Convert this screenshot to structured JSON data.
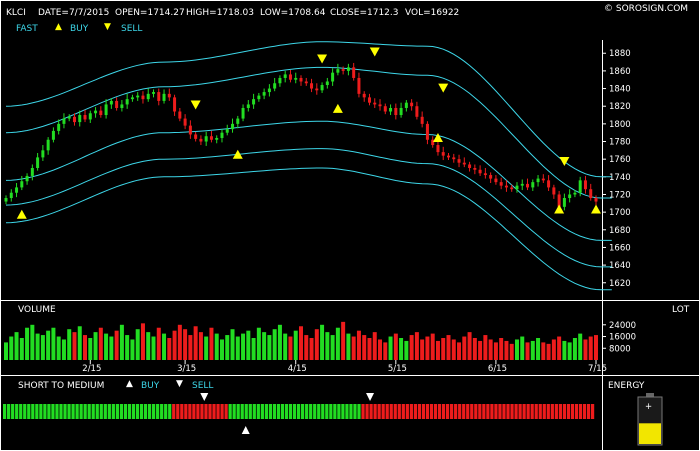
{
  "header": {
    "symbol": "KLCI",
    "date": "DATE=7/7/2015",
    "open": "OPEN=1714.27",
    "high": "HIGH=1718.03",
    "low": "LOW=1708.64",
    "close": "CLOSE=1712.3",
    "vol": "VOL=16922",
    "brand": "© SOROSIGN.COM",
    "legend_fast": "FAST",
    "legend_buy": "BUY",
    "legend_sell": "SELL"
  },
  "volume_panel": {
    "label": "VOLUME",
    "unit": "LOT"
  },
  "stm_panel": {
    "label": "SHORT TO MEDIUM",
    "buy": "BUY",
    "sell": "SELL"
  },
  "energy_panel": {
    "label": "ENERGY"
  },
  "colors": {
    "up": "#22dd22",
    "down": "#ee1c1c",
    "band": "#3dd6e8",
    "signal": "#ffff00",
    "energy": "#f2e600"
  },
  "chart_data": {
    "type": "candlestick",
    "price_axis": {
      "ylim": [
        1605,
        1895
      ],
      "ticks": [
        1620,
        1640,
        1660,
        1680,
        1700,
        1720,
        1740,
        1760,
        1780,
        1800,
        1820,
        1840,
        1860,
        1880
      ]
    },
    "x_ticks": [
      "2/15",
      "3/15",
      "4/15",
      "5/15",
      "6/15",
      "7/15"
    ],
    "close": [
      1716,
      1722,
      1728,
      1735,
      1741,
      1750,
      1762,
      1770,
      1782,
      1792,
      1800,
      1806,
      1808,
      1802,
      1810,
      1805,
      1812,
      1815,
      1810,
      1822,
      1826,
      1818,
      1822,
      1828,
      1830,
      1832,
      1828,
      1834,
      1836,
      1826,
      1834,
      1830,
      1814,
      1806,
      1798,
      1788,
      1783,
      1780,
      1786,
      1782,
      1784,
      1790,
      1794,
      1800,
      1806,
      1818,
      1822,
      1828,
      1832,
      1836,
      1840,
      1846,
      1852,
      1856,
      1850,
      1852,
      1848,
      1846,
      1840,
      1838,
      1844,
      1848,
      1858,
      1862,
      1860,
      1864,
      1852,
      1834,
      1830,
      1824,
      1822,
      1820,
      1814,
      1818,
      1810,
      1818,
      1824,
      1820,
      1808,
      1800,
      1782,
      1776,
      1768,
      1764,
      1762,
      1760,
      1756,
      1754,
      1750,
      1748,
      1744,
      1742,
      1738,
      1734,
      1730,
      1728,
      1726,
      1730,
      1732,
      1728,
      1734,
      1738,
      1736,
      1728,
      1720,
      1706,
      1716,
      1720,
      1722,
      1736,
      1726,
      1716,
      1712
    ],
    "bands": [
      {
        "name": "upper2",
        "anchors": [
          [
            0,
            1820
          ],
          [
            30,
            1870
          ],
          [
            60,
            1893
          ],
          [
            80,
            1888
          ],
          [
            113,
            1740
          ]
        ]
      },
      {
        "name": "upper1",
        "anchors": [
          [
            0,
            1790
          ],
          [
            30,
            1842
          ],
          [
            60,
            1864
          ],
          [
            80,
            1855
          ],
          [
            113,
            1716
          ]
        ]
      },
      {
        "name": "middle",
        "anchors": [
          [
            0,
            1736
          ],
          [
            30,
            1790
          ],
          [
            60,
            1803
          ],
          [
            80,
            1788
          ],
          [
            113,
            1668
          ]
        ]
      },
      {
        "name": "lower1",
        "anchors": [
          [
            0,
            1708
          ],
          [
            30,
            1760
          ],
          [
            60,
            1772
          ],
          [
            80,
            1755
          ],
          [
            113,
            1638
          ]
        ]
      },
      {
        "name": "lower2",
        "anchors": [
          [
            0,
            1688
          ],
          [
            30,
            1740
          ],
          [
            60,
            1750
          ],
          [
            80,
            1732
          ],
          [
            113,
            1612
          ]
        ]
      }
    ],
    "buy_signals": [
      [
        3,
        1697
      ],
      [
        44,
        1765
      ],
      [
        63,
        1817
      ],
      [
        82,
        1784
      ],
      [
        105,
        1703
      ],
      [
        112,
        1703
      ]
    ],
    "sell_signals": [
      [
        36,
        1822
      ],
      [
        60,
        1874
      ],
      [
        70,
        1882
      ],
      [
        83,
        1841
      ],
      [
        106,
        1758
      ]
    ],
    "volume": {
      "ticks": [
        8000,
        16000,
        24000
      ],
      "ymax": 30000,
      "values": [
        12000,
        16000,
        19000,
        15000,
        22000,
        24000,
        18000,
        17000,
        20000,
        22000,
        16000,
        14000,
        21000,
        19000,
        23000,
        17000,
        15000,
        19000,
        22000,
        18000,
        16000,
        20000,
        24000,
        17000,
        14000,
        21000,
        25000,
        19000,
        16000,
        22000,
        18000,
        15000,
        20000,
        24000,
        21000,
        17000,
        23000,
        19000,
        16000,
        22000,
        18000,
        14000,
        17000,
        21000,
        16000,
        18000,
        20000,
        15000,
        22000,
        19000,
        17000,
        21000,
        24000,
        18000,
        16000,
        20000,
        23000,
        17000,
        15000,
        21000,
        24000,
        19000,
        17000,
        22000,
        26000,
        18000,
        16000,
        20000,
        17000,
        15000,
        19000,
        14000,
        12000,
        16000,
        18000,
        15000,
        13000,
        17000,
        19000,
        14000,
        16000,
        18000,
        13000,
        15000,
        17000,
        14000,
        12000,
        16000,
        19000,
        15000,
        13000,
        17000,
        14000,
        12000,
        15000,
        13000,
        11000,
        14000,
        16000,
        12000,
        13000,
        15000,
        12000,
        11000,
        14000,
        16000,
        13000,
        12000,
        15000,
        18000,
        14000,
        16000,
        17000
      ]
    },
    "short_to_medium": {
      "states": "GGGGGGGGGGGGGGGGGGGGGGGGGGGGGGGGGGGGGGGGGGRRRRRRRRRRRRRRGGGGGGGGGGGGGGGGGGGGGGGGGGGGGGGGGRRRRRRRRRRRRRRRRRRRRRRRRRRRRRRRRRRRRRRRRRRRRRRRRRRRRRRRRRR",
      "sell_marks": [
        0.34,
        0.62
      ],
      "buy_marks": [
        0.41
      ]
    },
    "energy_level": 0.45
  }
}
